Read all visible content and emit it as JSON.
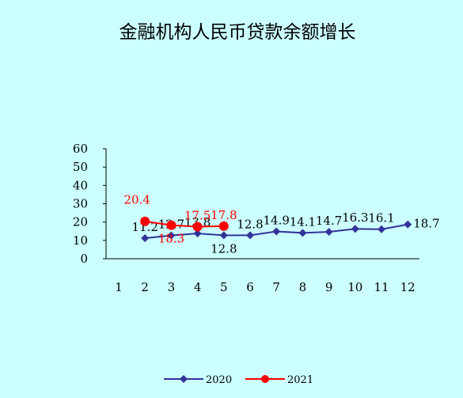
{
  "chart_data": {
    "type": "line",
    "title": "金融机构人民币贷款余额增长",
    "categories": [
      "1",
      "2",
      "3",
      "4",
      "5",
      "6",
      "7",
      "8",
      "9",
      "10",
      "11",
      "12"
    ],
    "y_ticks": [
      "0",
      "10",
      "20",
      "30",
      "40",
      "50",
      "60"
    ],
    "ylim": [
      0,
      60
    ],
    "grid": false,
    "legend_position": "bottom",
    "series": [
      {
        "name": "2020",
        "color": "#333399",
        "marker": "diamond",
        "values": [
          null,
          11.2,
          12.7,
          13.8,
          12.8,
          12.8,
          14.9,
          14.1,
          14.7,
          16.3,
          16.1,
          18.7
        ],
        "labels": [
          null,
          "11.2",
          "12.7",
          "13.8",
          "12.8",
          "12.8",
          "14.9",
          "14.1",
          "14.7",
          "16.3",
          "16.1",
          "18.7"
        ],
        "label_pos": [
          null,
          "above",
          "above",
          "above",
          "below",
          "above",
          "above",
          "above",
          "above",
          "above",
          "above",
          "right"
        ]
      },
      {
        "name": "2021",
        "color": "#ff0000",
        "marker": "circle",
        "values": [
          null,
          20.4,
          18.3,
          17.5,
          17.8,
          null,
          null,
          null,
          null,
          null,
          null,
          null
        ],
        "labels": [
          null,
          "20.4",
          "18.3",
          "17.5",
          "17.8",
          null,
          null,
          null,
          null,
          null,
          null,
          null
        ],
        "label_pos": [
          null,
          "above-left",
          "below",
          "above",
          "above",
          null,
          null,
          null,
          null,
          null,
          null,
          null
        ]
      }
    ]
  }
}
